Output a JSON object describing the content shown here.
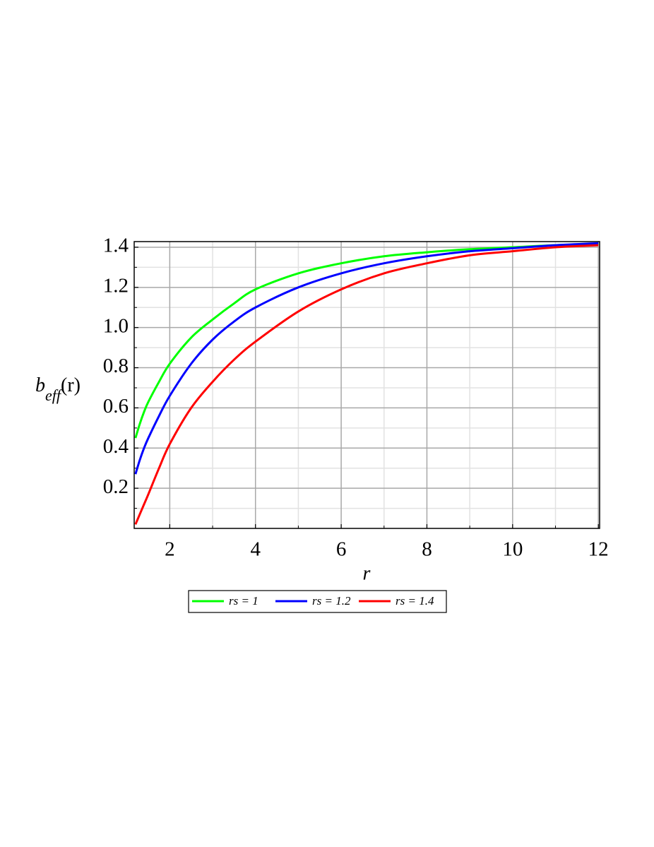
{
  "chart_data": {
    "type": "line",
    "x_label": "r",
    "y_label": "b",
    "y_label_sub": "eff",
    "y_label_arg": "(r)",
    "x": [
      1.2,
      1.3,
      1.4,
      1.5,
      1.75,
      2,
      2.5,
      3,
      3.5,
      4,
      5,
      6,
      7,
      8,
      9,
      10,
      11,
      12
    ],
    "series": [
      {
        "name": "rs = 1",
        "color": "#00ff00",
        "values": [
          0.45,
          0.52,
          0.58,
          0.63,
          0.73,
          0.82,
          0.95,
          1.04,
          1.12,
          1.19,
          1.27,
          1.32,
          1.355,
          1.375,
          1.39,
          1.4,
          1.41,
          1.415
        ]
      },
      {
        "name": "rs = 1.2",
        "color": "#0000ff",
        "values": [
          0.27,
          0.34,
          0.4,
          0.45,
          0.56,
          0.66,
          0.82,
          0.94,
          1.03,
          1.1,
          1.2,
          1.27,
          1.32,
          1.355,
          1.38,
          1.395,
          1.41,
          1.42
        ]
      },
      {
        "name": "rs = 1.4",
        "color": "#ff0000",
        "values": [
          0.02,
          0.07,
          0.12,
          0.17,
          0.3,
          0.42,
          0.6,
          0.73,
          0.84,
          0.93,
          1.08,
          1.19,
          1.27,
          1.32,
          1.36,
          1.38,
          1.4,
          1.41
        ]
      }
    ],
    "xlim": [
      1.17,
      12.03
    ],
    "ylim": [
      0,
      1.428
    ],
    "xticks": [
      2,
      4,
      6,
      8,
      10,
      12
    ],
    "yticks": [
      0.2,
      0.4,
      0.6,
      0.8,
      {
        "value": 1,
        "label": "1.0"
      },
      1.2,
      1.4
    ],
    "xminorticks": [
      3,
      5,
      7,
      9,
      11
    ],
    "yminorticks": [
      0.1,
      0.3,
      0.5,
      0.7,
      0.9,
      1.1,
      1.3
    ],
    "grid": true
  }
}
